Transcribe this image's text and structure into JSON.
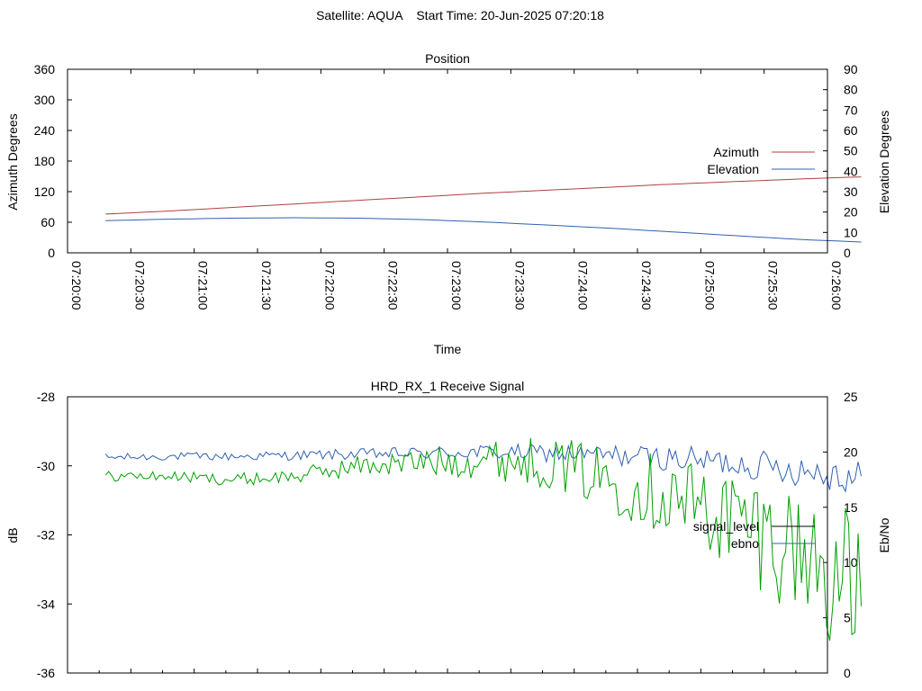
{
  "page": {
    "super_title": "Satellite: AQUA    Start Time: 20-Jun-2025 07:20:18"
  },
  "chart_data": [
    {
      "type": "line",
      "title": "Position",
      "xlabel": "Time",
      "ylabel_left": "Azimuth Degrees",
      "ylabel_right": "Elevation Degrees",
      "x_tick_labels": [
        "07:20:00",
        "07:20:30",
        "07:21:00",
        "07:21:30",
        "07:22:00",
        "07:22:30",
        "07:23:00",
        "07:23:30",
        "07:24:00",
        "07:24:30",
        "07:25:00",
        "07:25:30",
        "07:26:00"
      ],
      "xlim": [
        "07:20:00",
        "07:26:00"
      ],
      "ylim_left": [
        0,
        360
      ],
      "ylim_right": [
        0,
        90
      ],
      "y_ticks_left": [
        0,
        60,
        120,
        180,
        240,
        300,
        360
      ],
      "y_ticks_right": [
        0,
        10,
        20,
        30,
        40,
        50,
        60,
        70,
        80,
        90
      ],
      "legend_position": "right",
      "series": [
        {
          "name": "Azimuth",
          "axis": "left",
          "color": "#b04040",
          "x": [
            "07:20:18",
            "07:20:48",
            "07:21:18",
            "07:21:48",
            "07:22:18",
            "07:22:48",
            "07:23:18",
            "07:23:48",
            "07:24:18",
            "07:24:48",
            "07:25:18",
            "07:25:48",
            "07:26:16"
          ],
          "y": [
            76,
            82,
            89,
            96,
            103,
            110,
            117,
            123,
            129,
            135,
            140,
            145,
            149
          ]
        },
        {
          "name": "Elevation",
          "axis": "right",
          "color": "#3060b0",
          "x": [
            "07:20:18",
            "07:20:48",
            "07:21:18",
            "07:21:48",
            "07:22:18",
            "07:22:48",
            "07:23:18",
            "07:23:48",
            "07:24:18",
            "07:24:48",
            "07:25:18",
            "07:25:48",
            "07:26:16"
          ],
          "y": [
            15.8,
            16.5,
            17.0,
            17.2,
            17.0,
            16.3,
            15.1,
            13.6,
            12.0,
            10.2,
            8.3,
            6.5,
            5.3
          ]
        }
      ]
    },
    {
      "type": "line",
      "title": "HRD_RX_1 Receive Signal",
      "ylabel_left": "dB",
      "ylabel_right": "Eb/No",
      "xlim": [
        "07:20:00",
        "07:26:00"
      ],
      "ylim_left": [
        -36,
        -28
      ],
      "ylim_right": [
        0,
        25
      ],
      "y_ticks_left": [
        -36,
        -34,
        -32,
        -30,
        -28
      ],
      "y_ticks_right": [
        0,
        5,
        10,
        15,
        20,
        25
      ],
      "legend_position": "right",
      "series": [
        {
          "name": "signal_level",
          "axis": "left",
          "color": "#000000",
          "legend_only": true
        },
        {
          "name": "ebno",
          "axis": "right",
          "color": "#3060b0",
          "x": [
            "07:20:18",
            "07:20:48",
            "07:21:18",
            "07:21:48",
            "07:22:18",
            "07:22:48",
            "07:23:18",
            "07:23:48",
            "07:24:18",
            "07:24:48",
            "07:25:18",
            "07:25:48",
            "07:26:16"
          ],
          "y": [
            19.5,
            19.6,
            19.6,
            19.7,
            19.8,
            19.9,
            20.0,
            19.9,
            19.7,
            19.4,
            19.0,
            18.4,
            17.8
          ]
        },
        {
          "name": "",
          "axis": "left",
          "color": "#00a000",
          "x": [
            "07:20:18",
            "07:20:48",
            "07:21:18",
            "07:21:48",
            "07:22:18",
            "07:22:48",
            "07:23:18",
            "07:23:48",
            "07:24:18",
            "07:24:48",
            "07:25:18",
            "07:25:48",
            "07:26:16"
          ],
          "y": [
            -30.3,
            -30.3,
            -30.4,
            -30.3,
            -30.0,
            -29.9,
            -29.8,
            -29.9,
            -30.4,
            -30.9,
            -31.6,
            -32.5,
            -33.8
          ]
        }
      ]
    }
  ]
}
